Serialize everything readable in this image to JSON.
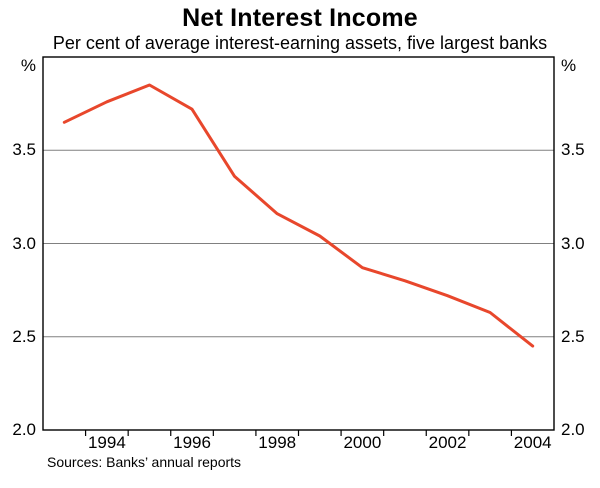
{
  "chart_data": {
    "type": "line",
    "title": "Net Interest Income",
    "subtitle": "Per cent of average interest-earning assets, five largest banks",
    "y_unit_left": "%",
    "y_unit_right": "%",
    "source": "Sources: Banks’ annual reports",
    "x": [
      1993,
      1994,
      1995,
      1996,
      1997,
      1998,
      1999,
      2000,
      2001,
      2002,
      2003,
      2004
    ],
    "series": [
      {
        "values": [
          3.65,
          3.76,
          3.85,
          3.72,
          3.36,
          3.16,
          3.04,
          2.87,
          2.8,
          2.72,
          2.63,
          2.45
        ],
        "color": "#e8472c"
      }
    ],
    "ylim": [
      2.0,
      4.0
    ],
    "yticks": [
      {
        "v": 2.0,
        "label": "2.0"
      },
      {
        "v": 2.5,
        "label": "2.5"
      },
      {
        "v": 3.0,
        "label": "3.0"
      },
      {
        "v": 3.5,
        "label": "3.5"
      }
    ],
    "xtick_labels": [
      {
        "year": 1994,
        "label": "1994"
      },
      {
        "year": 1996,
        "label": "1996"
      },
      {
        "year": 1998,
        "label": "1998"
      },
      {
        "year": 2000,
        "label": "2000"
      },
      {
        "year": 2002,
        "label": "2002"
      },
      {
        "year": 2004,
        "label": "2004"
      }
    ],
    "grid": "horizontal",
    "legend": "none",
    "colors": {
      "line": "#e8472c",
      "grid": "#808080",
      "frame": "#000000",
      "text": "#000000"
    }
  }
}
